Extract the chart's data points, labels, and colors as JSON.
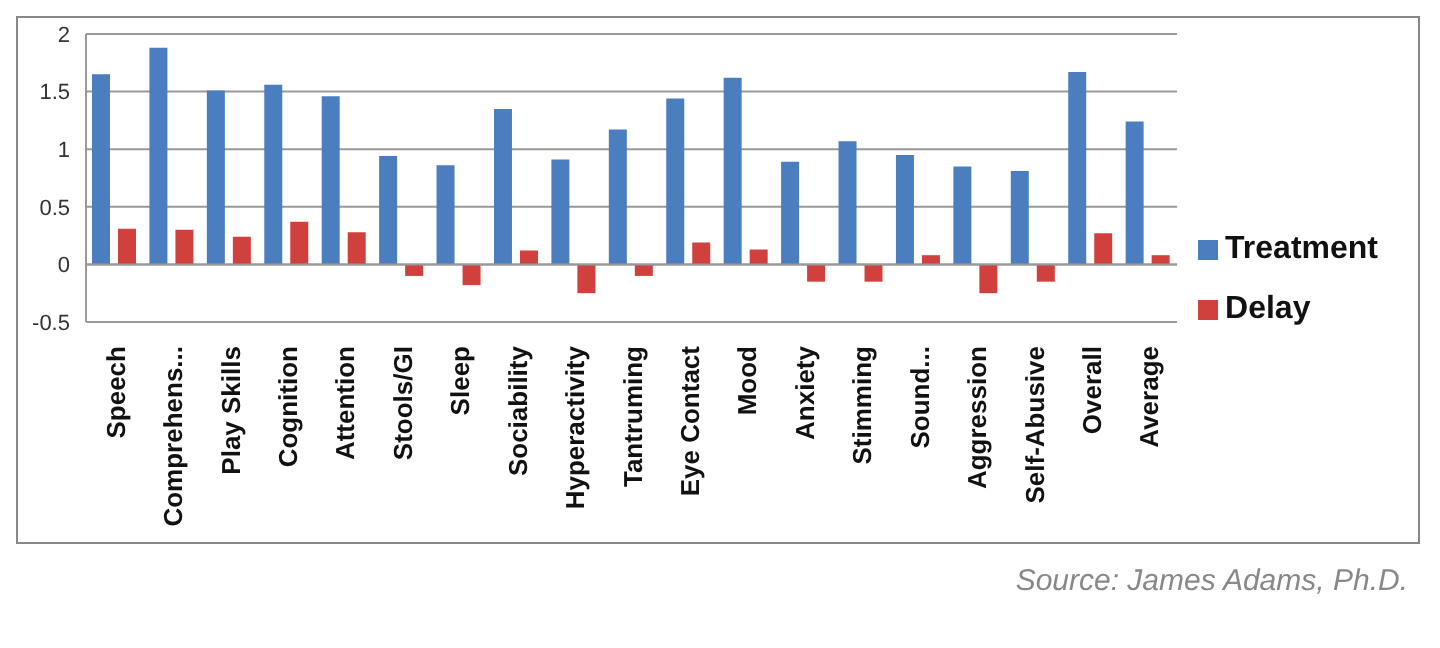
{
  "chart_data": {
    "type": "bar",
    "categories": [
      "Speech",
      "Comprehens...",
      "Play Skills",
      "Cognition",
      "Attention",
      "Stools/GI",
      "Sleep",
      "Sociability",
      "Hyperactivity",
      "Tantruming",
      "Eye Contact",
      "Mood",
      "Anxiety",
      "Stimming",
      "Sound...",
      "Aggression",
      "Self-Abusive",
      "Overall",
      "Average"
    ],
    "series": [
      {
        "name": "Treatment",
        "color": "#4a7ebf",
        "values": [
          1.65,
          1.88,
          1.51,
          1.56,
          1.46,
          0.94,
          0.86,
          1.35,
          0.91,
          1.17,
          1.44,
          1.62,
          0.89,
          1.07,
          0.95,
          0.85,
          0.81,
          1.67,
          1.24
        ]
      },
      {
        "name": "Delay",
        "color": "#d0413e",
        "values": [
          0.31,
          0.3,
          0.24,
          0.37,
          0.28,
          -0.1,
          -0.18,
          0.12,
          -0.25,
          -0.1,
          0.19,
          0.13,
          -0.15,
          -0.15,
          0.08,
          -0.25,
          -0.15,
          0.27,
          0.08
        ]
      }
    ],
    "ylim": [
      -0.5,
      2
    ],
    "yticks": [
      -0.5,
      0,
      0.5,
      1,
      1.5,
      2
    ],
    "grid": "y",
    "legend": "right",
    "annotations": [
      "Source: James Adams, Ph.D."
    ]
  }
}
